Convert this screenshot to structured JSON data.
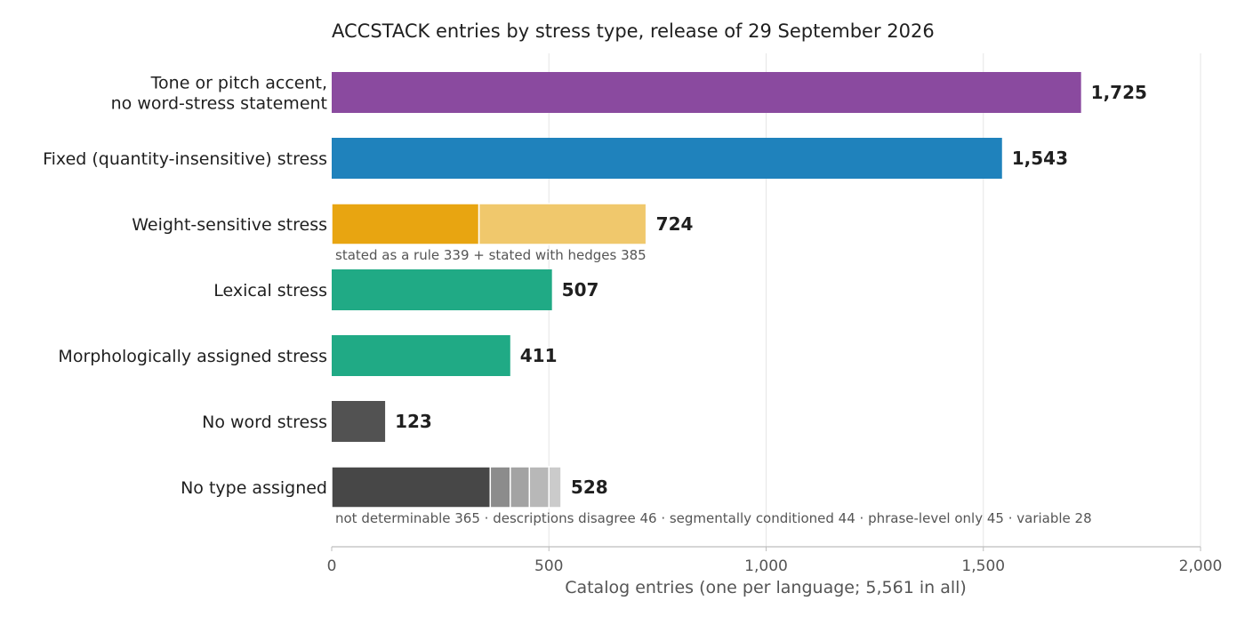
{
  "chart_data": {
    "type": "bar",
    "orientation": "horizontal",
    "title": "ACCSTACK entries by stress type, release of 29 September 2026",
    "xlabel": "Catalog entries (one per language; 5,561 in all)",
    "xlim": [
      0,
      2000
    ],
    "xticks": [
      0,
      500,
      1000,
      1500,
      2000
    ],
    "xtick_labels": [
      "0",
      "500",
      "1,000",
      "1,500",
      "2,000"
    ],
    "grid": "vertical",
    "categories": [
      {
        "label_lines": [
          "Tone or pitch accent,",
          "no word-stress statement"
        ],
        "value": 1725,
        "value_label": "1,725",
        "color": "#8a4a9f"
      },
      {
        "label_lines": [
          "Fixed (quantity-insensitive) stress"
        ],
        "value": 1543,
        "value_label": "1,543",
        "color": "#1f82bc"
      },
      {
        "label_lines": [
          "Weight-sensitive stress"
        ],
        "value": 724,
        "value_label": "724",
        "segments": [
          {
            "name": "stated as a rule",
            "value": 339,
            "color": "#e8a511"
          },
          {
            "name": "stated with hedges",
            "value": 385,
            "color": "#f0c86c"
          }
        ],
        "note": "stated as a rule 339  +  stated with hedges 385"
      },
      {
        "label_lines": [
          "Lexical stress"
        ],
        "value": 507,
        "value_label": "507",
        "color": "#20aa85"
      },
      {
        "label_lines": [
          "Morphologically assigned stress"
        ],
        "value": 411,
        "value_label": "411",
        "color": "#20aa85"
      },
      {
        "label_lines": [
          "No word stress"
        ],
        "value": 123,
        "value_label": "123",
        "color": "#525252"
      },
      {
        "label_lines": [
          "No type assigned"
        ],
        "value": 528,
        "value_label": "528",
        "segments": [
          {
            "name": "not determinable",
            "value": 365,
            "color": "#474747"
          },
          {
            "name": "descriptions disagree",
            "value": 46,
            "color": "#8c8c8c"
          },
          {
            "name": "segmentally conditioned",
            "value": 44,
            "color": "#a3a3a3"
          },
          {
            "name": "phrase-level only",
            "value": 45,
            "color": "#b8b8b8"
          },
          {
            "name": "variable",
            "value": 28,
            "color": "#cbcbcb"
          }
        ],
        "note": "not determinable 365  ·  descriptions disagree 46  ·  segmentally conditioned 44  ·  phrase-level only 45  ·  variable 28"
      }
    ]
  }
}
